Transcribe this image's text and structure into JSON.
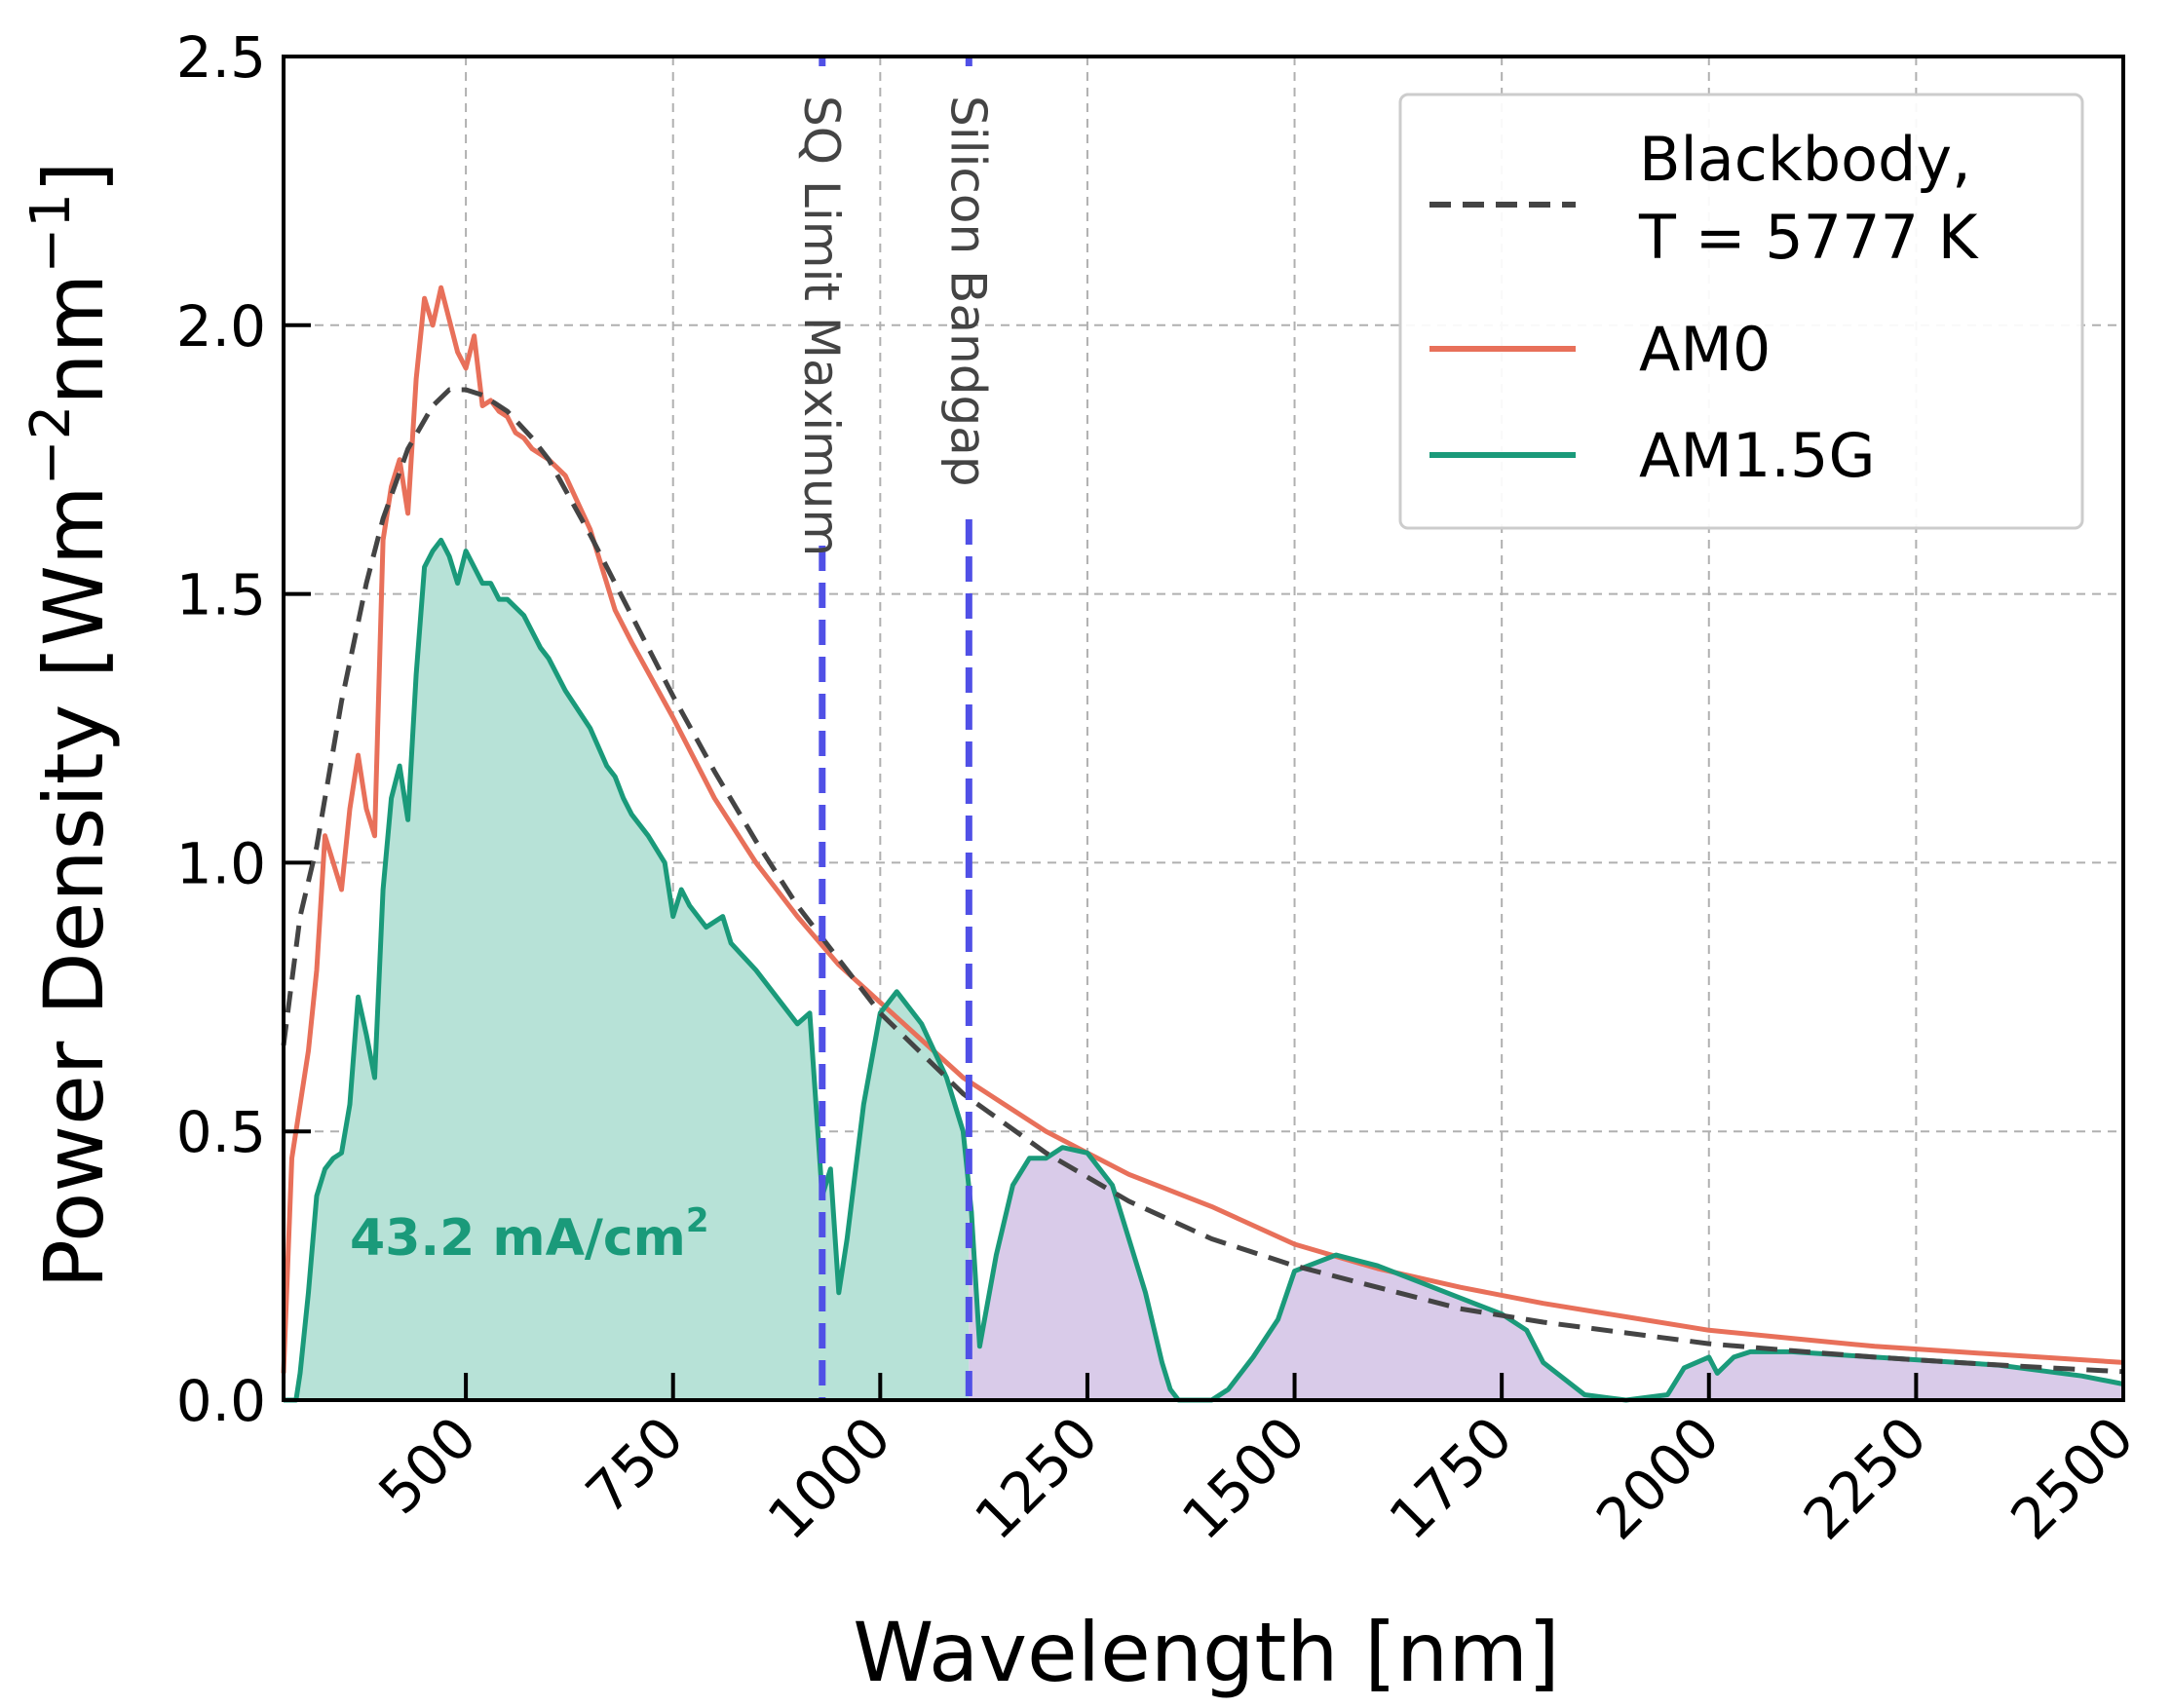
{
  "chart_data": {
    "type": "line",
    "xlabel": "Wavelength [nm]",
    "ylabel_main": "Power Density [Wm",
    "ylabel_sup1": "−2",
    "ylabel_mid": "nm",
    "ylabel_sup2": "−1",
    "ylabel_end": "]",
    "xlim": [
      280,
      2500
    ],
    "ylim": [
      0,
      2.5
    ],
    "xticks": [
      500,
      750,
      1000,
      1250,
      1500,
      1750,
      2000,
      2250,
      2500
    ],
    "xtick_labels": [
      "500",
      "750",
      "1000",
      "1250",
      "1500",
      "1750",
      "2000",
      "2250",
      "2500"
    ],
    "yticks": [
      0,
      0.5,
      1.0,
      1.5,
      2.0,
      2.5
    ],
    "ytick_labels": [
      "0.0",
      "0.5",
      "1.0",
      "1.5",
      "2.0",
      "2.5"
    ],
    "grid": true,
    "legend_position": "top-right",
    "legend": [
      {
        "label_line1": "Blackbody,",
        "label_line2": "T = 5777 K",
        "color": "#444444",
        "style": "dashed"
      },
      {
        "label_line1": "AM0",
        "label_line2": "",
        "color": "#e8705a",
        "style": "solid"
      },
      {
        "label_line1": "AM1.5G",
        "label_line2": "",
        "color": "#1a9a7a",
        "style": "solid"
      }
    ],
    "colors": {
      "blackbody": "#444444",
      "am0": "#e8705a",
      "am15g": "#1a9a7a",
      "fill_green": "#b7e2d7",
      "fill_purple": "#d9cbe9",
      "vlines": "#5050e6"
    },
    "vlines": [
      {
        "x": 930,
        "label": "SQ Limit Maximum"
      },
      {
        "x": 1107,
        "label": "Silicon Bandgap"
      }
    ],
    "annotation": {
      "text": "43.2 mA/cm",
      "sup": "2",
      "x": 360,
      "y": 0.27
    },
    "series": [
      {
        "name": "Blackbody,\nT = 5777 K",
        "x": [
          280,
          300,
          320,
          350,
          380,
          400,
          430,
          460,
          480,
          500,
          520,
          550,
          580,
          600,
          650,
          700,
          750,
          800,
          850,
          900,
          950,
          1000,
          1100,
          1200,
          1300,
          1400,
          1500,
          1600,
          1700,
          1800,
          1900,
          2000,
          2100,
          2200,
          2300,
          2400,
          2500
        ],
        "y": [
          0.66,
          0.9,
          1.03,
          1.3,
          1.52,
          1.64,
          1.77,
          1.85,
          1.88,
          1.88,
          1.87,
          1.84,
          1.79,
          1.75,
          1.61,
          1.46,
          1.31,
          1.17,
          1.04,
          0.92,
          0.82,
          0.72,
          0.57,
          0.46,
          0.37,
          0.3,
          0.25,
          0.21,
          0.17,
          0.145,
          0.125,
          0.105,
          0.092,
          0.08,
          0.07,
          0.061,
          0.053
        ]
      },
      {
        "name": "AM0",
        "x": [
          280,
          290,
          300,
          310,
          320,
          330,
          340,
          350,
          360,
          370,
          380,
          390,
          400,
          410,
          420,
          430,
          440,
          450,
          460,
          470,
          480,
          490,
          500,
          510,
          520,
          530,
          540,
          550,
          560,
          570,
          580,
          600,
          620,
          650,
          680,
          700,
          750,
          800,
          850,
          900,
          950,
          1000,
          1050,
          1100,
          1150,
          1200,
          1250,
          1300,
          1400,
          1500,
          1600,
          1700,
          1800,
          1900,
          2000,
          2100,
          2200,
          2300,
          2400,
          2500
        ],
        "y": [
          0.05,
          0.45,
          0.55,
          0.65,
          0.8,
          1.05,
          1.0,
          0.95,
          1.1,
          1.2,
          1.1,
          1.05,
          1.6,
          1.7,
          1.75,
          1.65,
          1.9,
          2.05,
          2.0,
          2.07,
          2.01,
          1.95,
          1.92,
          1.98,
          1.85,
          1.86,
          1.84,
          1.83,
          1.8,
          1.79,
          1.77,
          1.75,
          1.72,
          1.62,
          1.47,
          1.41,
          1.27,
          1.12,
          1.0,
          0.9,
          0.81,
          0.74,
          0.67,
          0.6,
          0.55,
          0.5,
          0.46,
          0.42,
          0.36,
          0.29,
          0.245,
          0.21,
          0.18,
          0.155,
          0.13,
          0.115,
          0.1,
          0.09,
          0.08,
          0.07
        ]
      },
      {
        "name": "AM1.5G",
        "x": [
          280,
          295,
          300,
          310,
          320,
          330,
          340,
          350,
          360,
          370,
          380,
          390,
          400,
          410,
          420,
          430,
          440,
          450,
          460,
          470,
          480,
          490,
          500,
          510,
          520,
          530,
          540,
          550,
          570,
          590,
          600,
          620,
          650,
          670,
          680,
          690,
          700,
          720,
          740,
          750,
          760,
          770,
          790,
          810,
          820,
          850,
          880,
          900,
          915,
          930,
          940,
          950,
          960,
          980,
          1000,
          1020,
          1050,
          1080,
          1100,
          1110,
          1120,
          1140,
          1160,
          1180,
          1200,
          1220,
          1250,
          1280,
          1300,
          1320,
          1340,
          1350,
          1360,
          1380,
          1400,
          1420,
          1450,
          1480,
          1500,
          1550,
          1600,
          1650,
          1700,
          1750,
          1780,
          1800,
          1850,
          1900,
          1950,
          1970,
          2000,
          2010,
          2030,
          2050,
          2100,
          2150,
          2200,
          2250,
          2300,
          2350,
          2400,
          2450,
          2500
        ],
        "y": [
          0.0,
          0.0,
          0.05,
          0.2,
          0.38,
          0.43,
          0.45,
          0.46,
          0.55,
          0.75,
          0.68,
          0.6,
          0.95,
          1.12,
          1.18,
          1.08,
          1.35,
          1.55,
          1.58,
          1.6,
          1.57,
          1.52,
          1.58,
          1.55,
          1.52,
          1.52,
          1.49,
          1.49,
          1.46,
          1.4,
          1.38,
          1.32,
          1.25,
          1.18,
          1.16,
          1.12,
          1.09,
          1.05,
          1.0,
          0.9,
          0.95,
          0.92,
          0.88,
          0.9,
          0.85,
          0.8,
          0.74,
          0.7,
          0.72,
          0.38,
          0.43,
          0.2,
          0.3,
          0.55,
          0.72,
          0.76,
          0.7,
          0.6,
          0.5,
          0.35,
          0.1,
          0.27,
          0.4,
          0.45,
          0.45,
          0.47,
          0.46,
          0.4,
          0.3,
          0.2,
          0.07,
          0.02,
          0.0,
          0.0,
          0.0,
          0.02,
          0.08,
          0.15,
          0.24,
          0.27,
          0.25,
          0.22,
          0.19,
          0.16,
          0.13,
          0.07,
          0.01,
          0.0,
          0.01,
          0.06,
          0.08,
          0.05,
          0.08,
          0.09,
          0.09,
          0.085,
          0.08,
          0.075,
          0.07,
          0.065,
          0.055,
          0.045,
          0.03
        ]
      }
    ],
    "shaded_regions": [
      {
        "from": 280,
        "to": 1107,
        "color": "#b7e2d7",
        "under": "AM1.5G"
      },
      {
        "from": 1107,
        "to": 2500,
        "color": "#d9cbe9",
        "under": "AM1.5G"
      }
    ]
  }
}
